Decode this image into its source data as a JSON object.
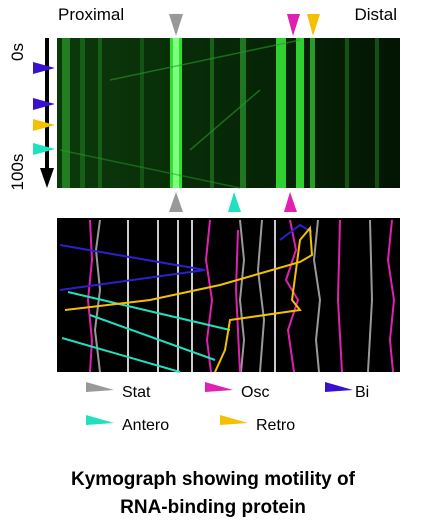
{
  "labels": {
    "proximal": "Proximal",
    "distal": "Distal",
    "time_start": "0s",
    "time_end": "100s"
  },
  "legend": {
    "items": [
      {
        "label": "Stat"
      },
      {
        "label": "Osc"
      },
      {
        "label": "Bi"
      },
      {
        "label": "Antero"
      },
      {
        "label": "Retro"
      }
    ]
  },
  "caption": {
    "lines": [
      "Kymograph showing motility of",
      "RNA-binding protein"
    ]
  }
}
